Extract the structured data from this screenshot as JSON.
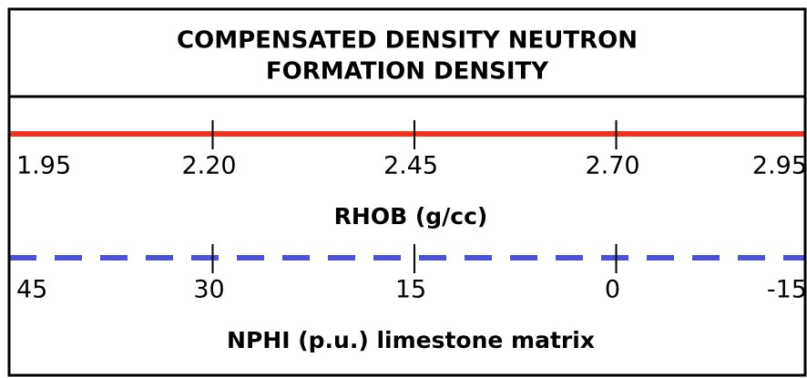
{
  "header": {
    "title_lines": [
      "COMPENSATED DENSITY NEUTRON",
      "FORMATION DENSITY"
    ]
  },
  "tracks": [
    {
      "ticks": [
        "1.95",
        "2.20",
        "2.45",
        "2.70",
        "2.95"
      ],
      "label": "RHOB (g/cc)",
      "line_style": "solid",
      "color": "#f0321e"
    },
    {
      "ticks": [
        "45",
        "30",
        "15",
        "0",
        "-15"
      ],
      "label": "NPHI (p.u.) limestone matrix",
      "line_style": "dashed",
      "color": "#4b52d6"
    }
  ]
}
